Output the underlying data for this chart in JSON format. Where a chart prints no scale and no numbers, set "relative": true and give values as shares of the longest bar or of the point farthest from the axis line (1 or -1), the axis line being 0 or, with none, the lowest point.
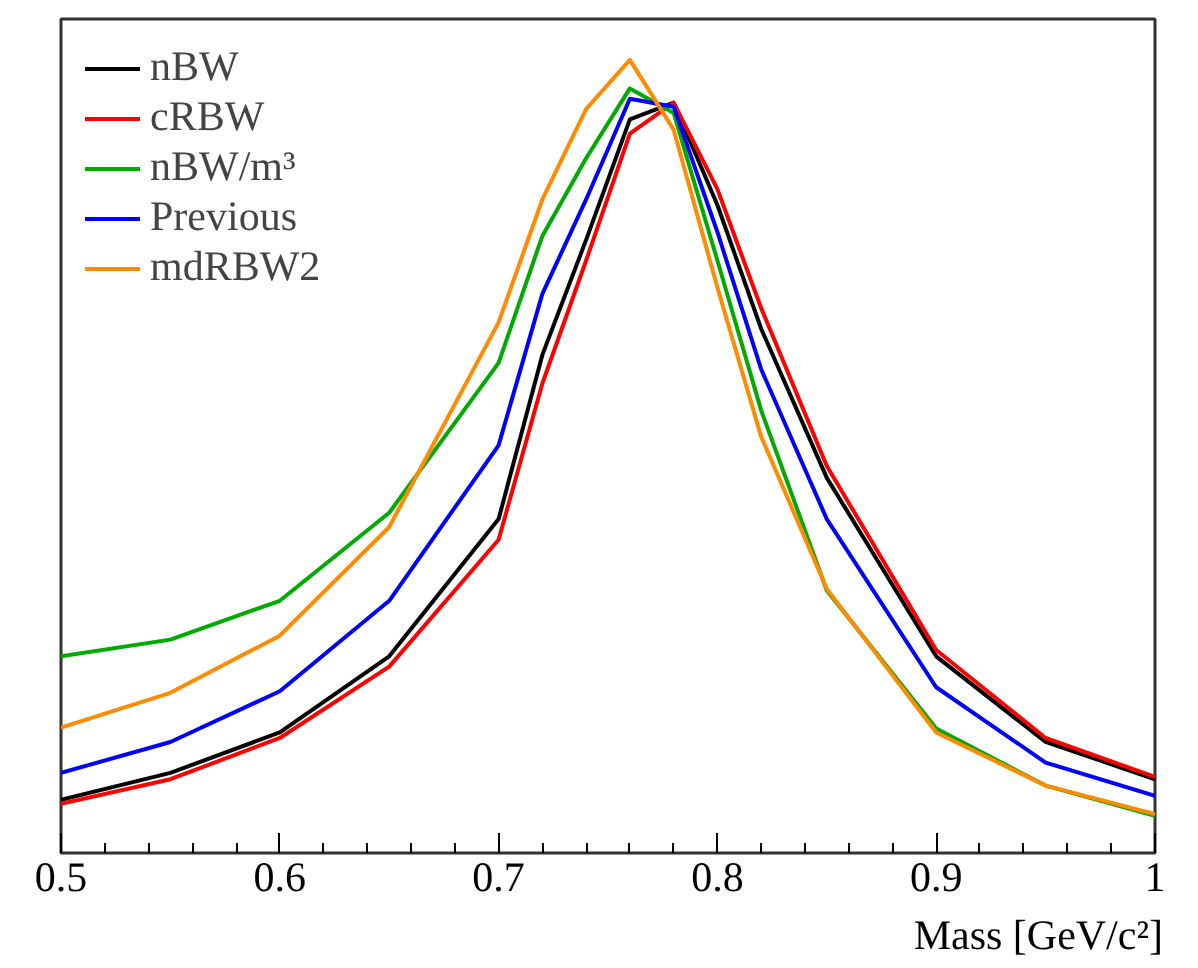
{
  "chart_data": {
    "type": "line",
    "relative": true,
    "xlabel": "Mass [GeV/c²]",
    "xlim": [
      0.5,
      1.0
    ],
    "xticks": [
      0.5,
      0.6,
      0.7,
      0.8,
      0.9,
      {
        "value": 1.0,
        "label": "1"
      }
    ],
    "grid": false,
    "legend": "top left",
    "line_style": "solid",
    "marker": "none",
    "x": [
      0.5,
      0.55,
      0.6,
      0.65,
      0.7,
      0.72,
      0.74,
      0.76,
      0.78,
      0.8,
      0.82,
      0.85,
      0.9,
      0.95,
      1.0
    ],
    "series": [
      {
        "name": "nBW",
        "color": "#000000",
        "values": [
          0.067,
          0.101,
          0.152,
          0.248,
          0.421,
          0.628,
          0.773,
          0.925,
          0.946,
          0.817,
          0.661,
          0.473,
          0.248,
          0.14,
          0.093
        ]
      },
      {
        "name": "cRBW",
        "color": "#ff0000",
        "values": [
          0.062,
          0.093,
          0.145,
          0.235,
          0.395,
          0.592,
          0.747,
          0.907,
          0.946,
          0.837,
          0.687,
          0.488,
          0.256,
          0.145,
          0.096
        ]
      },
      {
        "name": "nBW/m³",
        "color": "#00aa00",
        "values": [
          0.248,
          0.269,
          0.318,
          0.429,
          0.618,
          0.778,
          0.876,
          0.964,
          0.933,
          0.747,
          0.558,
          0.331,
          0.157,
          0.085,
          0.047
        ]
      },
      {
        "name": "Previous",
        "color": "#0000ff",
        "values": [
          0.101,
          0.14,
          0.204,
          0.318,
          0.514,
          0.705,
          0.824,
          0.951,
          0.941,
          0.783,
          0.61,
          0.421,
          0.209,
          0.114,
          0.072
        ]
      },
      {
        "name": "mdRBW2",
        "color": "#ff8c00",
        "values": [
          0.158,
          0.202,
          0.274,
          0.411,
          0.669,
          0.824,
          0.938,
          1.0,
          0.912,
          0.713,
          0.525,
          0.333,
          0.152,
          0.085,
          0.049
        ]
      }
    ]
  }
}
